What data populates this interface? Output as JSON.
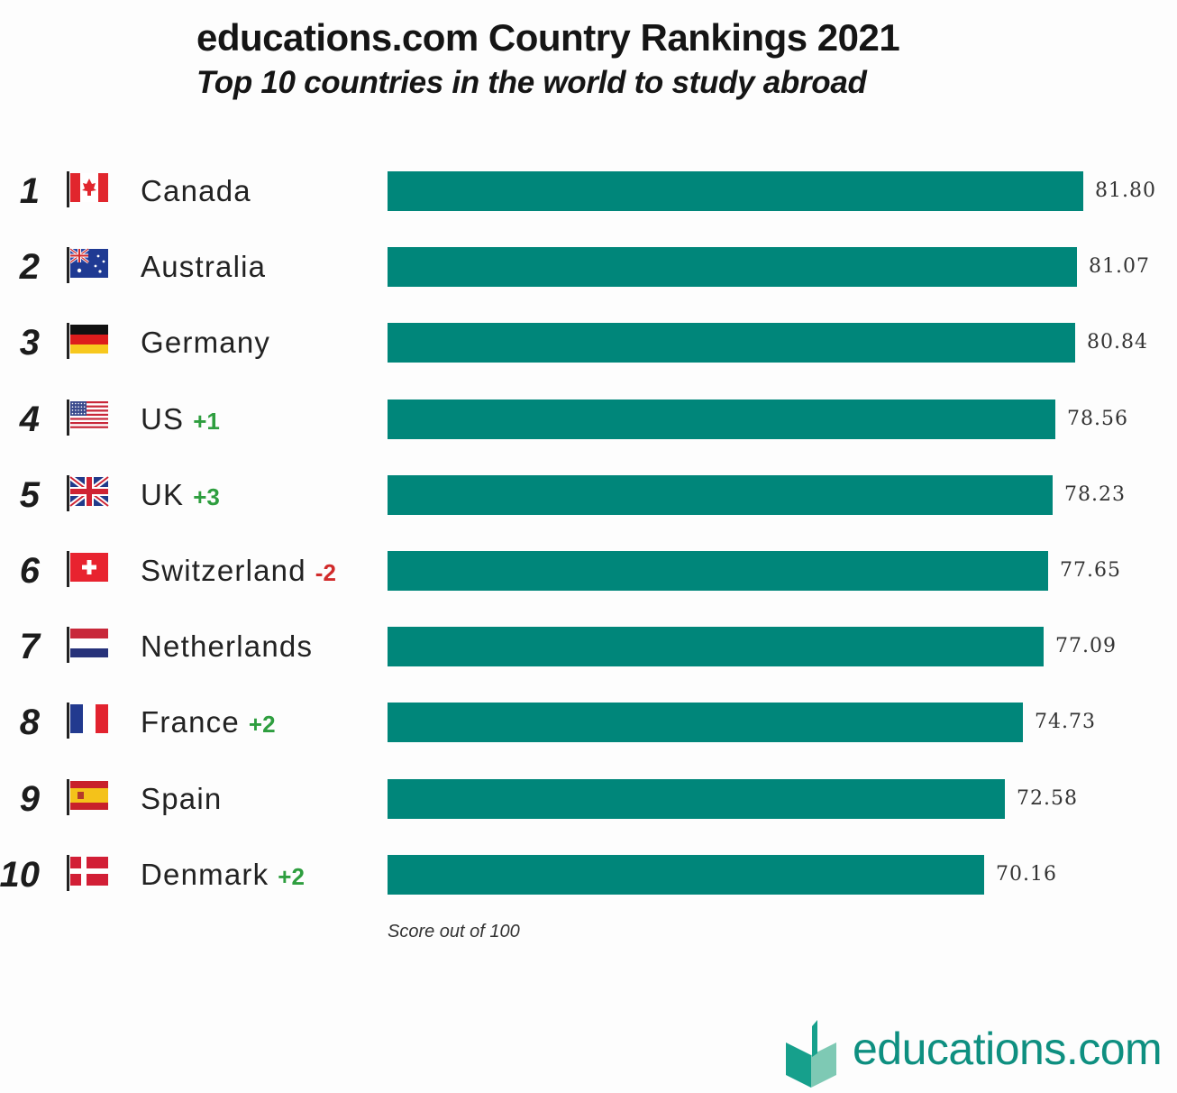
{
  "header": {
    "title": "educations.com Country Rankings 2021",
    "subtitle": "Top 10 countries in the world to study abroad"
  },
  "chart_data": {
    "type": "bar",
    "orientation": "horizontal",
    "title": "educations.com Country Rankings 2021",
    "subtitle": "Top 10 countries in the world to study abroad",
    "xlabel": "Score out of 100",
    "ylabel": "",
    "xlim": [
      0,
      100
    ],
    "grid": false,
    "bar_color": "#00867a",
    "categories": [
      "Canada",
      "Australia",
      "Germany",
      "US",
      "UK",
      "Switzerland",
      "Netherlands",
      "France",
      "Spain",
      "Denmark"
    ],
    "values": [
      81.8,
      81.07,
      80.84,
      78.56,
      78.23,
      77.65,
      77.09,
      74.73,
      72.58,
      70.16
    ],
    "rows": [
      {
        "rank": "1",
        "country": "Canada",
        "flag": "canada-flag",
        "change": "",
        "value": "81.80"
      },
      {
        "rank": "2",
        "country": "Australia",
        "flag": "australia-flag",
        "change": "",
        "value": "81.07"
      },
      {
        "rank": "3",
        "country": "Germany",
        "flag": "germany-flag",
        "change": "",
        "value": "80.84"
      },
      {
        "rank": "4",
        "country": "US",
        "flag": "us-flag",
        "change": "+1",
        "value": "78.56"
      },
      {
        "rank": "5",
        "country": "UK",
        "flag": "uk-flag",
        "change": "+3",
        "value": "78.23"
      },
      {
        "rank": "6",
        "country": "Switzerland",
        "flag": "switzerland-flag",
        "change": "-2",
        "value": "77.65"
      },
      {
        "rank": "7",
        "country": "Netherlands",
        "flag": "netherlands-flag",
        "change": "",
        "value": "77.09"
      },
      {
        "rank": "8",
        "country": "France",
        "flag": "france-flag",
        "change": "+2",
        "value": "74.73"
      },
      {
        "rank": "9",
        "country": "Spain",
        "flag": "spain-flag",
        "change": "",
        "value": "72.58"
      },
      {
        "rank": "10",
        "country": "Denmark",
        "flag": "denmark-flag",
        "change": "+2",
        "value": "70.16"
      }
    ]
  },
  "colors": {
    "bar": "#00867a",
    "positive_change": "#2e9e3f",
    "negative_change": "#d12b2b",
    "brand": "#0e8f80"
  },
  "footnote": "Score out of 100",
  "logo": {
    "text": "educations.com",
    "icon": "book-icon"
  }
}
